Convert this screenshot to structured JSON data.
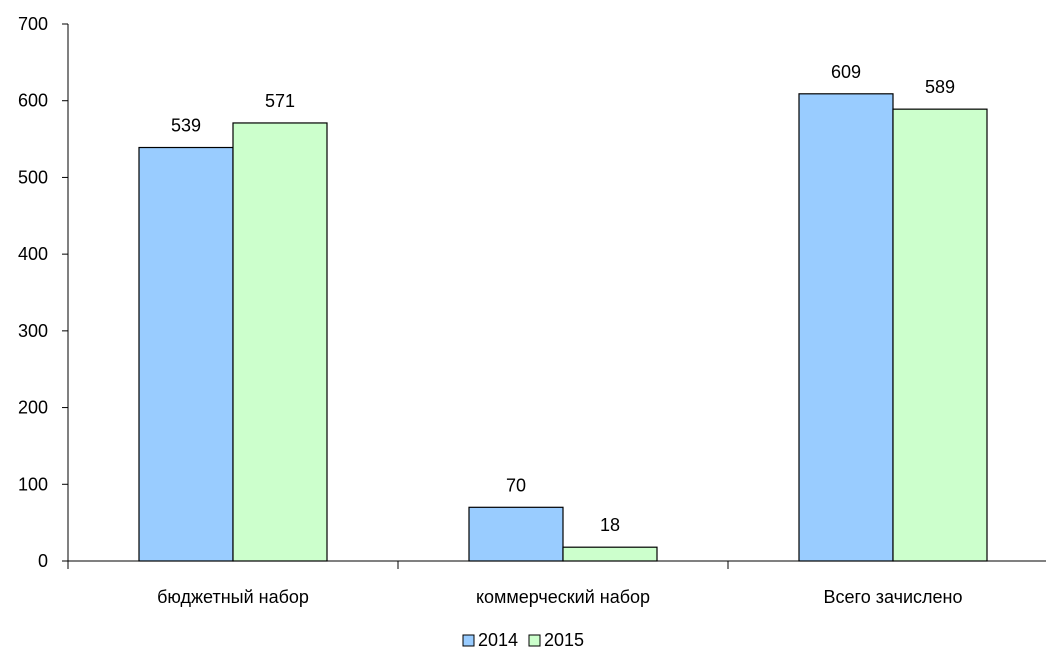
{
  "chart_data": {
    "type": "bar",
    "categories": [
      "бюджетный набор",
      "коммерческий набор",
      "Всего зачислено"
    ],
    "series": [
      {
        "name": "2014",
        "values": [
          539,
          70,
          609
        ],
        "color": "#99ccff"
      },
      {
        "name": "2015",
        "values": [
          571,
          18,
          589
        ],
        "color": "#ccffcc"
      }
    ],
    "ylim": [
      0,
      700
    ],
    "yticks": [
      0,
      100,
      200,
      300,
      400,
      500,
      600,
      700
    ],
    "data_labels": true,
    "grid": false,
    "legend_position": "bottom",
    "title": "",
    "xlabel": "",
    "ylabel": ""
  }
}
